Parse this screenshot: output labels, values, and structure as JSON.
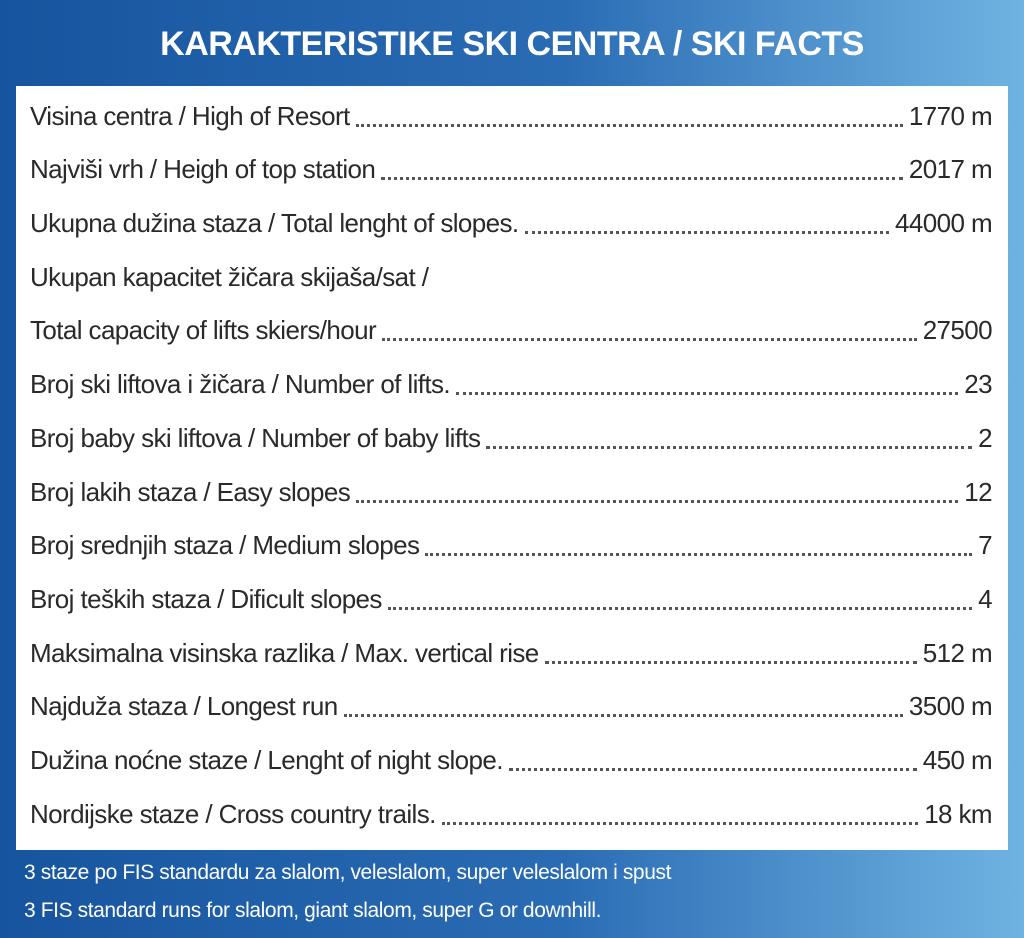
{
  "header": {
    "title": "KARAKTERISTIKE SKI CENTRA / SKI FACTS"
  },
  "rows": [
    {
      "label": "Visina centra / High of Resort",
      "value": "1770 m"
    },
    {
      "label": "Najviši vrh / Heigh of top station",
      "value": "2017 m"
    },
    {
      "label": "Ukupna dužina staza / Total lenght of slopes.",
      "value": "44000 m"
    },
    {
      "label": "Ukupan kapacitet žičara skijaša/sat /"
    },
    {
      "label": "Total capacity of lifts skiers/hour",
      "value": "27500"
    },
    {
      "label": "Broj ski liftova i žičara / Number of lifts.",
      "value": "23"
    },
    {
      "label": "Broj baby ski liftova / Number of baby lifts",
      "value": "2"
    },
    {
      "label": "Broj lakih staza / Easy slopes",
      "value": "12"
    },
    {
      "label": "Broj srednjih staza / Medium slopes",
      "value": "7"
    },
    {
      "label": "Broj teških staza / Dificult slopes",
      "value": "4"
    },
    {
      "label": "Maksimalna visinska razlika / Max. vertical rise",
      "value": "512 m"
    },
    {
      "label": "Najduža staza / Longest run",
      "value": "3500 m"
    },
    {
      "label": "Dužina noćne staze / Lenght of night slope.",
      "value": "450 m"
    },
    {
      "label": "Nordijske staze / Cross country trails.",
      "value": "18 km"
    }
  ],
  "footer": {
    "lines": [
      "3 staze po FIS standardu za slalom, veleslalom, super veleslalom i spust",
      "3 FIS standard runs for slalom, giant slalom, super G or downhill."
    ]
  }
}
